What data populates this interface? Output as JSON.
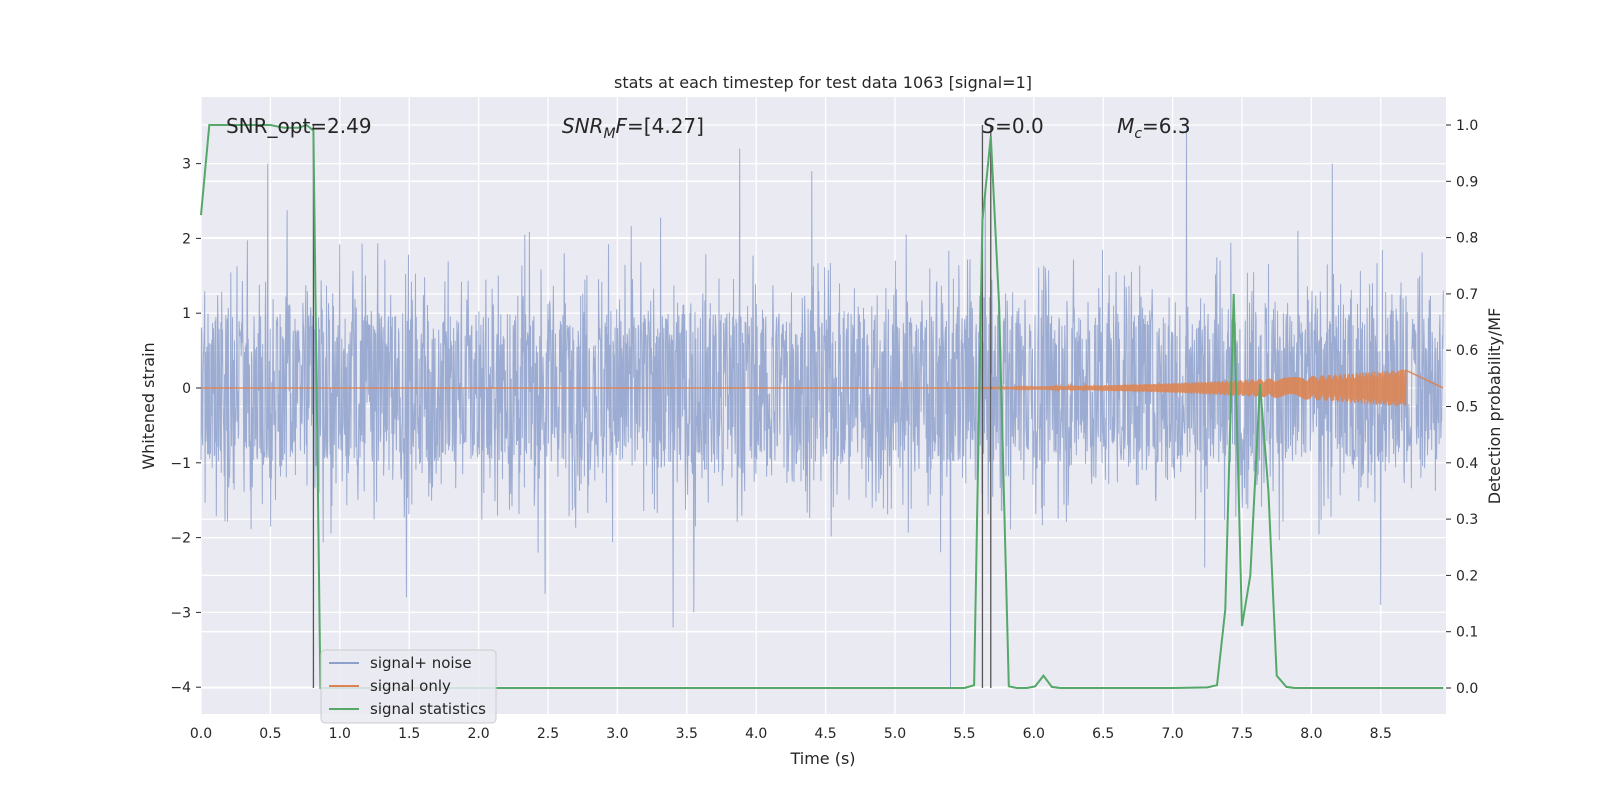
{
  "chart_data": {
    "type": "line",
    "title": "stats at each timestep for test data 1063 [signal=1]",
    "xlabel": "Time (s)",
    "ylabel": "Whitened strain",
    "ylabel_right": "Detection probability/MF",
    "xlim": [
      0.0,
      9.0
    ],
    "ylim": [
      -4.35,
      3.9
    ],
    "ylim_right": [
      -0.048,
      1.048
    ],
    "x_ticks": [
      0.0,
      0.5,
      1.0,
      1.5,
      2.0,
      2.5,
      3.0,
      3.5,
      4.0,
      4.5,
      5.0,
      5.5,
      6.0,
      6.5,
      7.0,
      7.5,
      8.0,
      8.5
    ],
    "x_tick_labels": [
      "0.0",
      "0.5",
      "1.0",
      "1.5",
      "2.0",
      "2.5",
      "3.0",
      "3.5",
      "4.0",
      "4.5",
      "5.0",
      "5.5",
      "6.0",
      "6.5",
      "7.0",
      "7.5",
      "8.0",
      "8.5"
    ],
    "y_ticks": [
      -4,
      -3,
      -2,
      -1,
      0,
      1,
      2,
      3
    ],
    "y_tick_labels": [
      "−4",
      "−3",
      "−2",
      "−1",
      "0",
      "1",
      "2",
      "3"
    ],
    "y_ticks_right": [
      0.0,
      0.1,
      0.2,
      0.3,
      0.4,
      0.5,
      0.6,
      0.7,
      0.8,
      0.9,
      1.0
    ],
    "y_tick_labels_right": [
      "0.0",
      "0.1",
      "0.2",
      "0.3",
      "0.4",
      "0.5",
      "0.6",
      "0.7",
      "0.8",
      "0.9",
      "1.0"
    ],
    "grid": true,
    "legend_position": "lower-left",
    "annotations": [
      {
        "text": "SNR_opt=2.49",
        "x": 0.18,
        "y": 3.5
      },
      {
        "text": "SNR_MF=[4.27]",
        "x": 2.6,
        "y": 3.5
      },
      {
        "text": "S=0.0",
        "x": 5.63,
        "y": 3.5
      },
      {
        "text": "M_c=6.3",
        "x": 6.6,
        "y": 3.5
      }
    ],
    "vertical_lines": [
      0.81,
      5.63,
      5.69
    ],
    "series": [
      {
        "name": "signal+ noise",
        "color": "#8da0cb",
        "axis": "left",
        "description": "noise",
        "amplitude_typical": 1.4,
        "extrema": [
          {
            "x": 0.48,
            "y": 3.0
          },
          {
            "x": 1.48,
            "y": -2.8
          },
          {
            "x": 2.48,
            "y": -2.75
          },
          {
            "x": 3.4,
            "y": -3.2
          },
          {
            "x": 3.55,
            "y": -3.0
          },
          {
            "x": 3.88,
            "y": 3.2
          },
          {
            "x": 4.4,
            "y": 2.9
          },
          {
            "x": 5.4,
            "y": -4.0
          },
          {
            "x": 7.1,
            "y": 3.5
          },
          {
            "x": 8.15,
            "y": 3.0
          },
          {
            "x": 8.5,
            "y": -2.9
          }
        ]
      },
      {
        "name": "signal only",
        "color": "#dd8452",
        "axis": "left",
        "description": "chirp",
        "t_start": 5.0,
        "t_end": 8.68,
        "peak_amplitude": 0.25
      },
      {
        "name": "signal statistics",
        "color": "#55a868",
        "axis": "right",
        "x": [
          0.0,
          0.06,
          0.1,
          0.2,
          0.3,
          0.4,
          0.5,
          0.6,
          0.7,
          0.76,
          0.81,
          0.86,
          0.93,
          1.0,
          2.0,
          3.0,
          4.0,
          5.0,
          5.4,
          5.5,
          5.57,
          5.63,
          5.69,
          5.75,
          5.82,
          5.88,
          5.95,
          6.01,
          6.07,
          6.13,
          6.19,
          6.25,
          6.5,
          7.0,
          7.25,
          7.32,
          7.38,
          7.44,
          7.5,
          7.56,
          7.63,
          7.69,
          7.75,
          7.82,
          7.88,
          8.0,
          8.5,
          8.95
        ],
        "values": [
          0.84,
          1.0,
          1.0,
          1.0,
          1.0,
          1.0,
          1.0,
          0.995,
          0.995,
          1.0,
          0.99,
          0.0,
          0.0,
          0.0,
          0.0,
          0.0,
          0.0,
          0.0,
          0.0,
          0.0,
          0.005,
          0.83,
          0.98,
          0.68,
          0.003,
          0.0,
          0.0,
          0.003,
          0.022,
          0.002,
          0.0,
          0.0,
          0.0,
          0.0,
          0.001,
          0.005,
          0.14,
          0.7,
          0.11,
          0.2,
          0.54,
          0.35,
          0.022,
          0.002,
          0.0,
          0.0,
          0.0,
          0.0
        ]
      }
    ]
  }
}
